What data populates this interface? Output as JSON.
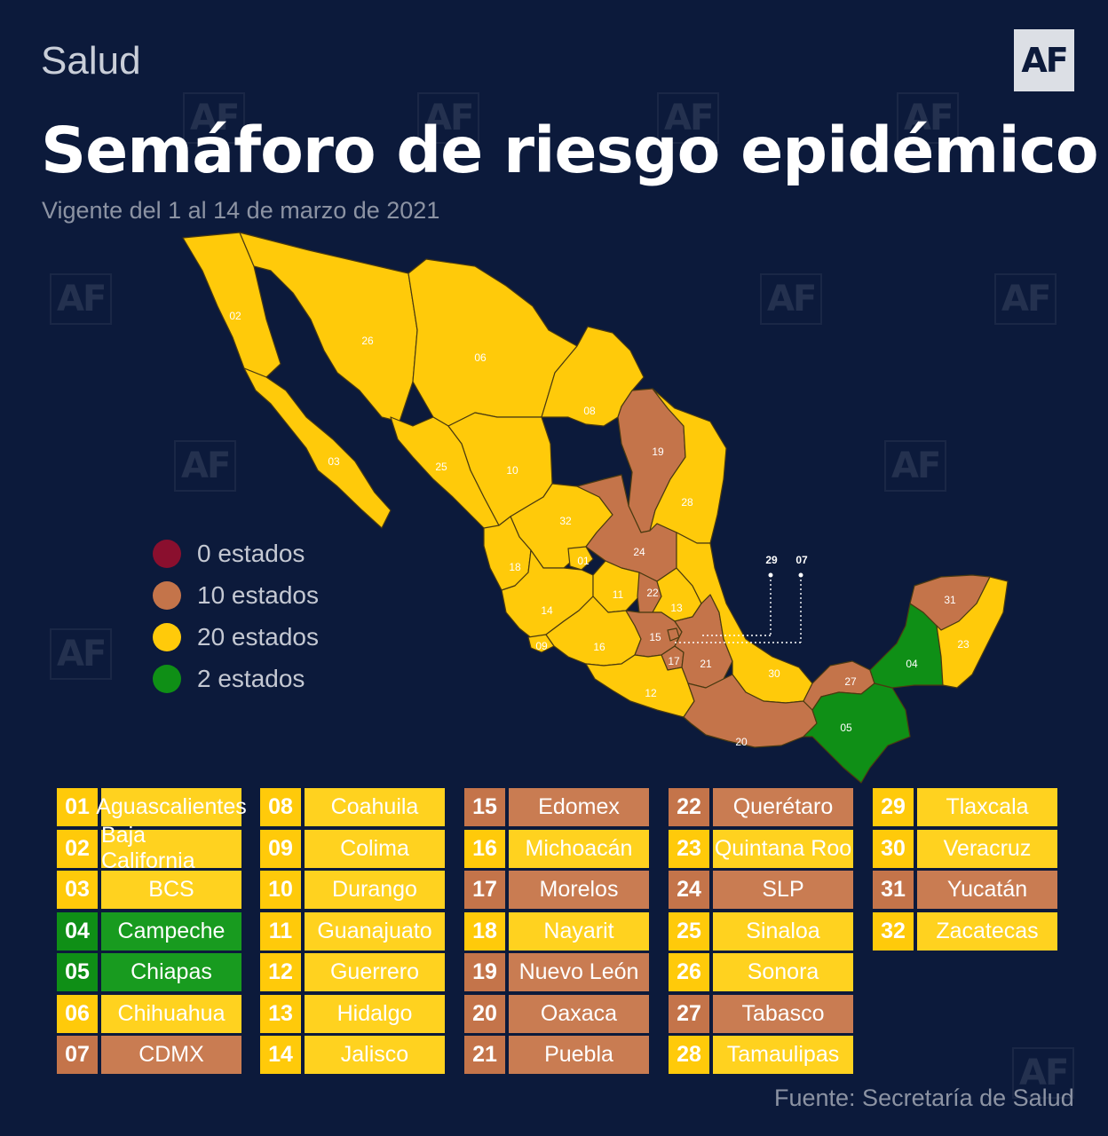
{
  "header": {
    "section": "Salud",
    "logo": "AF",
    "title": "Semáforo de riesgo epidémico",
    "subtitle": "Vigente del 1 al 14 de marzo de 2021"
  },
  "colors": {
    "rojo": "#8a0f2e",
    "naranja": "#c4744a",
    "amarillo": "#ffca0a",
    "verde": "#0f8f16",
    "background": "#0c1a3b"
  },
  "legend": [
    {
      "label": "0 estados",
      "color": "#8a0f2e"
    },
    {
      "label": "10 estados",
      "color": "#c4744a"
    },
    {
      "label": "20 estados",
      "color": "#ffca0a"
    },
    {
      "label": "2 estados",
      "color": "#0f8f16"
    }
  ],
  "callouts": [
    "29",
    "07"
  ],
  "states": [
    {
      "num": "01",
      "name": "Aguascalientes",
      "level": "amarillo"
    },
    {
      "num": "02",
      "name": "Baja California",
      "level": "amarillo"
    },
    {
      "num": "03",
      "name": "BCS",
      "level": "amarillo"
    },
    {
      "num": "04",
      "name": "Campeche",
      "level": "verde"
    },
    {
      "num": "05",
      "name": "Chiapas",
      "level": "verde"
    },
    {
      "num": "06",
      "name": "Chihuahua",
      "level": "amarillo"
    },
    {
      "num": "07",
      "name": "CDMX",
      "level": "naranja"
    },
    {
      "num": "08",
      "name": "Coahuila",
      "level": "amarillo"
    },
    {
      "num": "09",
      "name": "Colima",
      "level": "amarillo"
    },
    {
      "num": "10",
      "name": "Durango",
      "level": "amarillo"
    },
    {
      "num": "11",
      "name": "Guanajuato",
      "level": "amarillo"
    },
    {
      "num": "12",
      "name": "Guerrero",
      "level": "amarillo"
    },
    {
      "num": "13",
      "name": "Hidalgo",
      "level": "amarillo"
    },
    {
      "num": "14",
      "name": "Jalisco",
      "level": "amarillo"
    },
    {
      "num": "15",
      "name": "Edomex",
      "level": "naranja"
    },
    {
      "num": "16",
      "name": "Michoacán",
      "level": "amarillo"
    },
    {
      "num": "17",
      "name": "Morelos",
      "level": "naranja"
    },
    {
      "num": "18",
      "name": "Nayarit",
      "level": "amarillo"
    },
    {
      "num": "19",
      "name": "Nuevo León",
      "level": "naranja"
    },
    {
      "num": "20",
      "name": "Oaxaca",
      "level": "naranja"
    },
    {
      "num": "21",
      "name": "Puebla",
      "level": "naranja"
    },
    {
      "num": "22",
      "name": "Querétaro",
      "level": "naranja"
    },
    {
      "num": "23",
      "name": "Quintana Roo",
      "level": "amarillo"
    },
    {
      "num": "24",
      "name": "SLP",
      "level": "naranja"
    },
    {
      "num": "25",
      "name": "Sinaloa",
      "level": "amarillo"
    },
    {
      "num": "26",
      "name": "Sonora",
      "level": "amarillo"
    },
    {
      "num": "27",
      "name": "Tabasco",
      "level": "naranja"
    },
    {
      "num": "28",
      "name": "Tamaulipas",
      "level": "amarillo"
    },
    {
      "num": "29",
      "name": "Tlaxcala",
      "level": "amarillo"
    },
    {
      "num": "30",
      "name": "Veracruz",
      "level": "amarillo"
    },
    {
      "num": "31",
      "name": "Yucatán",
      "level": "naranja"
    },
    {
      "num": "32",
      "name": "Zacatecas",
      "level": "amarillo"
    }
  ],
  "source": "Fuente: Secretaría de Salud"
}
